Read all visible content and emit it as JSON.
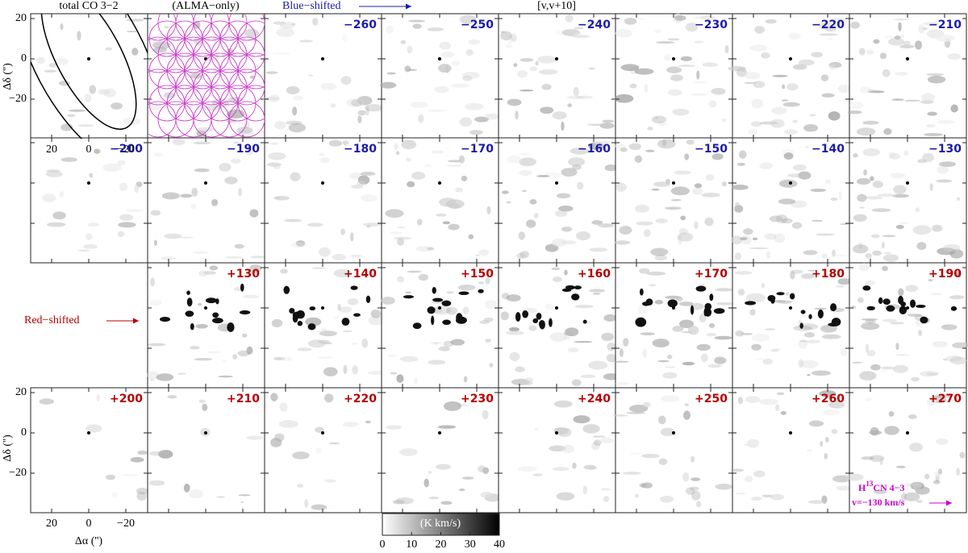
{
  "headers": [
    "total CO 3−2",
    "(ALMA−only)",
    "Blue−shifted",
    "[v,v+10]"
  ],
  "row_label": "Red−shifted",
  "channel_maps": {
    "blue": [
      "−260",
      "−250",
      "−240",
      "−230",
      "−220",
      "−210",
      "−200",
      "−190",
      "−180",
      "−170",
      "−160",
      "−150",
      "−140",
      "−130"
    ],
    "red": [
      "+130",
      "+140",
      "+150",
      "+160",
      "+170",
      "+180",
      "+190",
      "+200",
      "+210",
      "+220",
      "+230",
      "+240",
      "+250",
      "+260",
      "+270"
    ],
    "blue_color": "#1c1ca8",
    "red_color": "#b40000"
  },
  "y_axis": {
    "label": "Δδ ('')",
    "ticks": [
      20,
      0,
      {
        "value": -20,
        "label": "−20"
      }
    ]
  },
  "x_axis": {
    "label": "Δα ('')",
    "ticks": [
      20,
      0,
      {
        "value": -20,
        "label": "−20"
      }
    ]
  },
  "colorbar": {
    "label": "(K km/s)",
    "ticks": [
      0,
      10,
      20,
      30,
      40
    ]
  },
  "annotation": {
    "line1": [
      "H",
      "13",
      "CN 4−3"
    ],
    "line2": "v=−130 km/s",
    "color": "#cc00cc"
  }
}
